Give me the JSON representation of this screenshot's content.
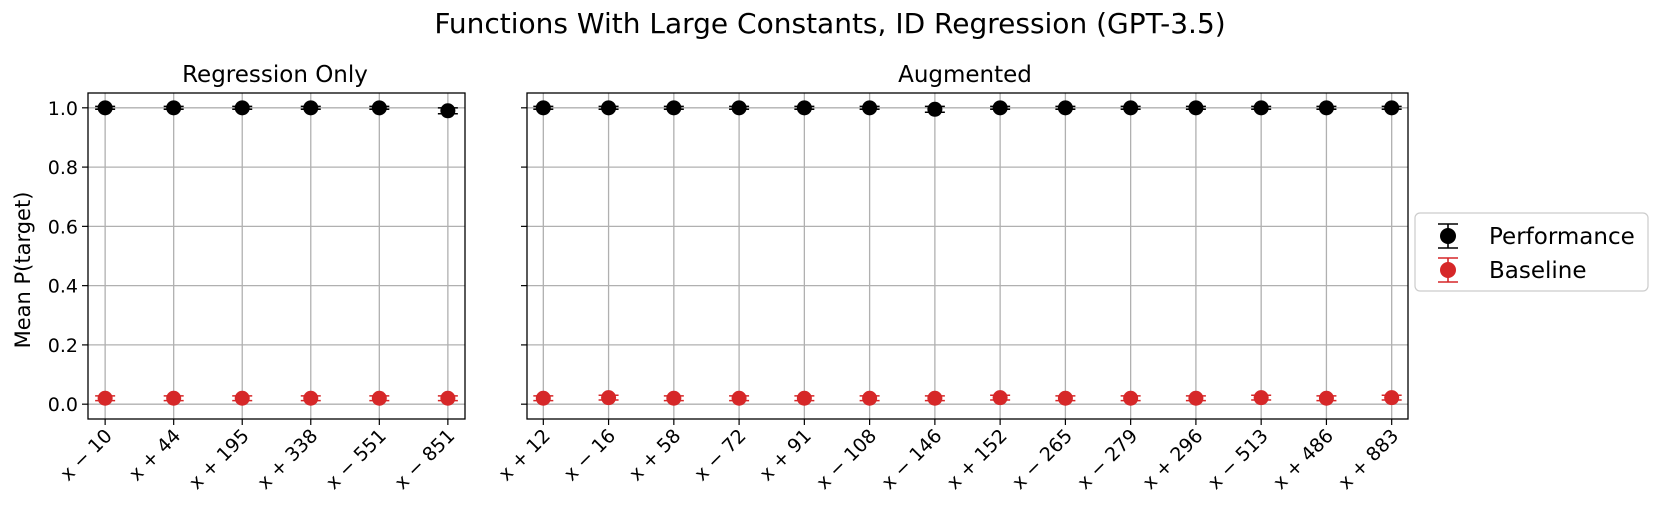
{
  "chart_data": {
    "type": "scatter",
    "title": "Functions With Large Constants, ID Regression (GPT-3.5)",
    "ylabel": "Mean P(target)",
    "ylim": [
      -0.05,
      1.05
    ],
    "yticks": [
      "0.0",
      "0.2",
      "0.4",
      "0.6",
      "0.8",
      "1.0"
    ],
    "grid": true,
    "legend_position": "right",
    "legend": [
      "Performance",
      "Baseline"
    ],
    "colors": {
      "performance": "#000000",
      "baseline": "#d62728",
      "grid": "#b0b0b0"
    },
    "panels": [
      {
        "subtitle": "Regression Only",
        "categories": [
          "x − 10",
          "x + 44",
          "x + 195",
          "x + 338",
          "x − 551",
          "x − 851"
        ],
        "series": [
          {
            "name": "Performance",
            "values": [
              1.0,
              1.0,
              1.0,
              1.0,
              1.0,
              0.99
            ],
            "errors": [
              0.005,
              0.005,
              0.005,
              0.005,
              0.005,
              0.01
            ]
          },
          {
            "name": "Baseline",
            "values": [
              0.02,
              0.02,
              0.02,
              0.02,
              0.02,
              0.02
            ],
            "errors": [
              0.008,
              0.008,
              0.008,
              0.008,
              0.008,
              0.008
            ]
          }
        ]
      },
      {
        "subtitle": "Augmented",
        "categories": [
          "x + 12",
          "x − 16",
          "x + 58",
          "x − 72",
          "x + 91",
          "x − 108",
          "x − 146",
          "x + 152",
          "x − 265",
          "x − 279",
          "x + 296",
          "x − 513",
          "x + 486",
          "x + 883"
        ],
        "series": [
          {
            "name": "Performance",
            "values": [
              1.0,
              1.0,
              1.0,
              1.0,
              1.0,
              1.0,
              0.995,
              1.0,
              1.0,
              1.0,
              1.0,
              1.0,
              1.0,
              1.0
            ],
            "errors": [
              0.005,
              0.005,
              0.005,
              0.005,
              0.005,
              0.005,
              0.01,
              0.005,
              0.005,
              0.005,
              0.005,
              0.005,
              0.005,
              0.005
            ]
          },
          {
            "name": "Baseline",
            "values": [
              0.02,
              0.022,
              0.02,
              0.02,
              0.02,
              0.02,
              0.02,
              0.022,
              0.02,
              0.02,
              0.02,
              0.022,
              0.02,
              0.022
            ],
            "errors": [
              0.008,
              0.008,
              0.008,
              0.008,
              0.008,
              0.008,
              0.008,
              0.008,
              0.008,
              0.008,
              0.008,
              0.008,
              0.008,
              0.008
            ]
          }
        ]
      }
    ]
  }
}
